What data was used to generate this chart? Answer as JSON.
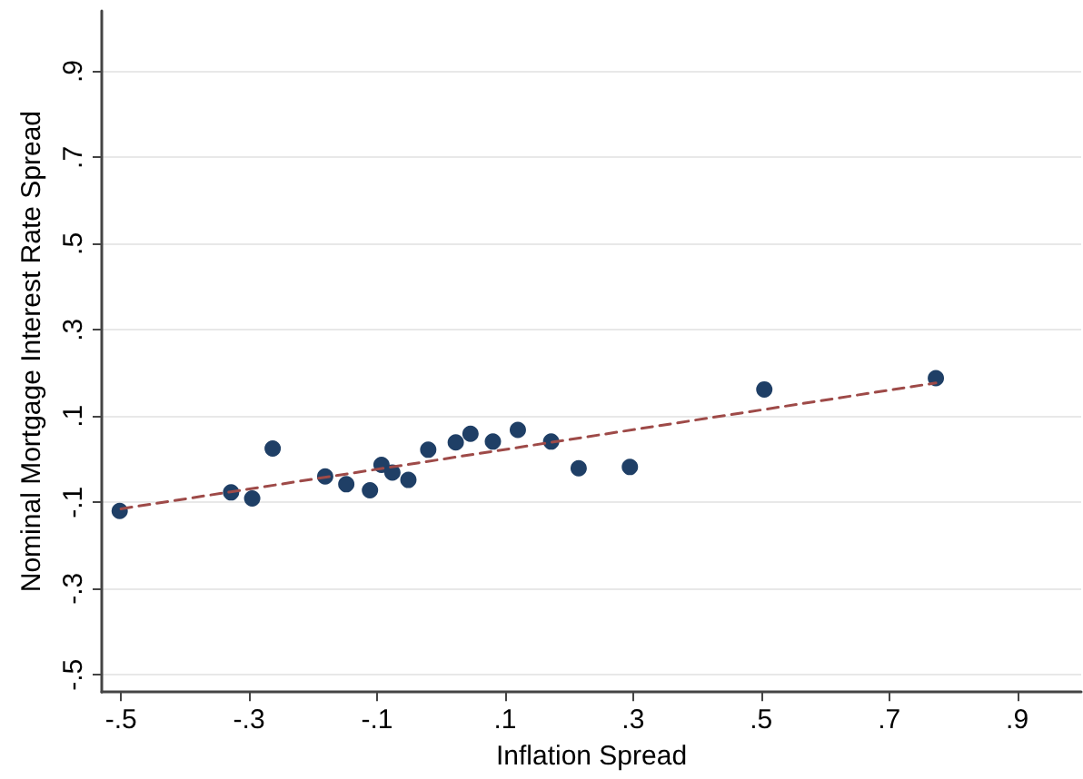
{
  "chart_data": {
    "type": "scatter",
    "xlabel": "Inflation Spread",
    "ylabel": "Nominal Mortgage Interest Rate Spread",
    "xlim": [
      -0.53,
      1.0
    ],
    "ylim": [
      -0.54,
      1.04
    ],
    "xticks": [
      {
        "value": -0.5,
        "label": "-.5"
      },
      {
        "value": -0.3,
        "label": "-.3"
      },
      {
        "value": -0.1,
        "label": "-.1"
      },
      {
        "value": 0.1,
        "label": ".1"
      },
      {
        "value": 0.3,
        "label": ".3"
      },
      {
        "value": 0.5,
        "label": ".5"
      },
      {
        "value": 0.7,
        "label": ".7"
      },
      {
        "value": 0.9,
        "label": ".9"
      }
    ],
    "yticks": [
      {
        "value": -0.5,
        "label": "-.5"
      },
      {
        "value": -0.3,
        "label": "-.3"
      },
      {
        "value": -0.1,
        "label": "-.1"
      },
      {
        "value": 0.1,
        "label": ".1"
      },
      {
        "value": 0.3,
        "label": ".3"
      },
      {
        "value": 0.5,
        "label": ".5"
      },
      {
        "value": 0.7,
        "label": ".7"
      },
      {
        "value": 0.9,
        "label": ".9"
      }
    ],
    "grid": "y",
    "marker": "circle",
    "series": [
      {
        "color": "#1f3f66",
        "x": [
          -0.502,
          -0.328,
          -0.295,
          -0.263,
          -0.181,
          -0.148,
          -0.111,
          -0.093,
          -0.076,
          -0.051,
          -0.02,
          0.023,
          0.046,
          0.081,
          0.12,
          0.172,
          0.215,
          0.295,
          0.505,
          0.773
        ],
        "values": [
          -0.12,
          -0.077,
          -0.091,
          0.025,
          -0.04,
          -0.058,
          -0.072,
          -0.013,
          -0.031,
          -0.048,
          0.022,
          0.039,
          0.059,
          0.041,
          0.068,
          0.041,
          -0.021,
          -0.018,
          0.162,
          0.188
        ]
      },
      {
        "type": "line",
        "color": "#9e4a48",
        "line_style": "dashed",
        "marker": "none",
        "x": [
          -0.5,
          0.773
        ],
        "values": [
          -0.115,
          0.177
        ]
      }
    ]
  }
}
